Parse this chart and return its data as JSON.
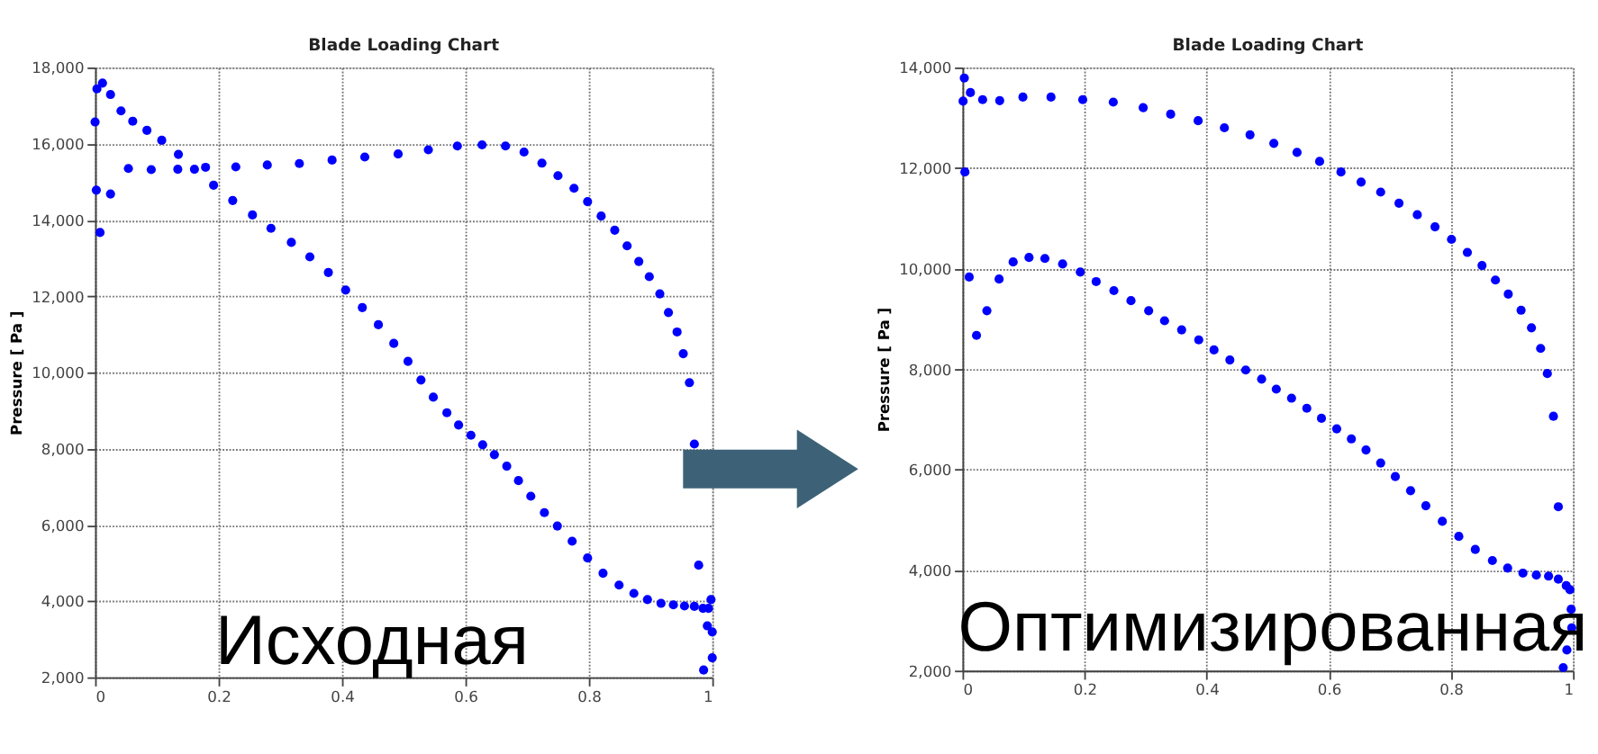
{
  "chart_data": [
    {
      "type": "scatter",
      "title": "Blade Loading Chart",
      "ylabel": "Pressure [ Pa ]",
      "xlim": [
        0,
        1
      ],
      "xticks": [
        0,
        0.2,
        0.4,
        0.6,
        0.8,
        1
      ],
      "ylim": [
        2000,
        18000
      ],
      "yticks": [
        {
          "value": 2000,
          "label": "2,000"
        },
        {
          "value": 4000,
          "label": "4,000"
        },
        {
          "value": 6000,
          "label": "6,000"
        },
        {
          "value": 8000,
          "label": "8,000"
        },
        {
          "value": 10000,
          "label": "10,000"
        },
        {
          "value": 12000,
          "label": "12,000"
        },
        {
          "value": 14000,
          "label": "14,000"
        },
        {
          "value": 16000,
          "label": "16,000"
        },
        {
          "value": 18000,
          "label": "18,000"
        }
      ],
      "grid": true,
      "marker": "circle",
      "legend": false,
      "annotations": [
        "Исходная"
      ],
      "series": [
        {
          "color": "#0000ff",
          "x": [
            0,
            0.003,
            0.012,
            0.025,
            0.042,
            0.061,
            0.084,
            0.108,
            0.135,
            0.192,
            0.223,
            0.255,
            0.285,
            0.318,
            0.348,
            0.378,
            0.406,
            0.433,
            0.459,
            0.484,
            0.507,
            0.528,
            0.548,
            0.57,
            0.589,
            0.609,
            0.628,
            0.647,
            0.667,
            0.686,
            0.706,
            0.728,
            0.749,
            0.773,
            0.798,
            0.823,
            0.849,
            0.873,
            0.895,
            0.917,
            0.937,
            0.955,
            0.971,
            0.985,
            0.994,
            0.998,
            0.992,
            1,
            1,
            0.986,
            0.978,
            0.971,
            0.963,
            0.953,
            0.943,
            0.929,
            0.915,
            0.898,
            0.881,
            0.862,
            0.842,
            0.82,
            0.798,
            0.776,
            0.75,
            0.724,
            0.695,
            0.665,
            0.627,
            0.587,
            0.54,
            0.491,
            0.437,
            0.384,
            0.331,
            0.279,
            0.228,
            0.179,
            0.161,
            0.134,
            0.091,
            0.054,
            0.025,
            0.008,
            0.002
          ],
          "values": [
            16570,
            17440,
            17590,
            17290,
            16860,
            16590,
            16350,
            16090,
            15720,
            14910,
            14510,
            14130,
            13780,
            13410,
            13030,
            12620,
            12160,
            11700,
            11250,
            10760,
            10290,
            9800,
            9350,
            8940,
            8620,
            8350,
            8100,
            7840,
            7540,
            7160,
            6750,
            6320,
            5970,
            5570,
            5130,
            4730,
            4420,
            4200,
            4040,
            3940,
            3900,
            3870,
            3860,
            3810,
            3810,
            4040,
            3350,
            3190,
            2510,
            2190,
            4940,
            8120,
            9730,
            10490,
            11060,
            11570,
            12060,
            12510,
            12910,
            13320,
            13730,
            14100,
            14480,
            14830,
            15160,
            15490,
            15780,
            15940,
            15970,
            15940,
            15840,
            15730,
            15650,
            15570,
            15480,
            15440,
            15390,
            15380,
            15330,
            15330,
            15320,
            15350,
            14680,
            13670,
            14780
          ]
        }
      ]
    },
    {
      "type": "scatter",
      "title": "Blade Loading Chart",
      "ylabel": "Pressure [ Pa ]",
      "xlim": [
        0,
        1
      ],
      "xticks": [
        0,
        0.2,
        0.4,
        0.6,
        0.8,
        1
      ],
      "ylim": [
        2000,
        14000
      ],
      "yticks": [
        {
          "value": 2000,
          "label": "2,000"
        },
        {
          "value": 4000,
          "label": "4,000"
        },
        {
          "value": 6000,
          "label": "6,000"
        },
        {
          "value": 8000,
          "label": "8,000"
        },
        {
          "value": 10000,
          "label": "10,000"
        },
        {
          "value": 12000,
          "label": "12,000"
        },
        {
          "value": 14000,
          "label": "14,000"
        }
      ],
      "grid": true,
      "marker": "circle",
      "legend": false,
      "annotations": [
        "Оптимизированная"
      ],
      "series": [
        {
          "color": "#0000ff",
          "x": [
            0.001,
            0.003,
            0.013,
            0.033,
            0.061,
            0.099,
            0.145,
            0.197,
            0.247,
            0.296,
            0.341,
            0.386,
            0.429,
            0.471,
            0.51,
            0.548,
            0.585,
            0.62,
            0.653,
            0.685,
            0.715,
            0.745,
            0.774,
            0.801,
            0.827,
            0.851,
            0.873,
            0.894,
            0.915,
            0.932,
            0.947,
            0.958,
            0.968,
            0.976,
            0.984,
            0.99,
            0.998,
            0.997,
            0.995,
            0.989,
            0.976,
            0.96,
            0.94,
            0.918,
            0.893,
            0.868,
            0.84,
            0.813,
            0.786,
            0.759,
            0.734,
            0.709,
            0.685,
            0.661,
            0.637,
            0.613,
            0.588,
            0.564,
            0.539,
            0.514,
            0.49,
            0.464,
            0.438,
            0.412,
            0.387,
            0.359,
            0.331,
            0.305,
            0.276,
            0.248,
            0.219,
            0.193,
            0.164,
            0.135,
            0.109,
            0.083,
            0.06,
            0.04,
            0.023,
            0.011,
            0.004
          ],
          "values": [
            13330,
            13790,
            13500,
            13360,
            13340,
            13410,
            13410,
            13360,
            13310,
            13200,
            13070,
            12940,
            12800,
            12660,
            12490,
            12310,
            12130,
            11920,
            11720,
            11520,
            11300,
            11070,
            10830,
            10580,
            10320,
            10060,
            9770,
            9490,
            9170,
            8820,
            8410,
            7910,
            7060,
            5260,
            2060,
            2410,
            2850,
            3220,
            3610,
            3690,
            3820,
            3880,
            3900,
            3940,
            4040,
            4190,
            4410,
            4670,
            4970,
            5280,
            5580,
            5860,
            6130,
            6390,
            6610,
            6810,
            7020,
            7220,
            7420,
            7600,
            7800,
            7980,
            8180,
            8380,
            8580,
            8780,
            8960,
            9160,
            9360,
            9560,
            9740,
            9930,
            10090,
            10200,
            10220,
            10130,
            9790,
            9160,
            8670,
            9830,
            11920
          ]
        }
      ]
    }
  ]
}
